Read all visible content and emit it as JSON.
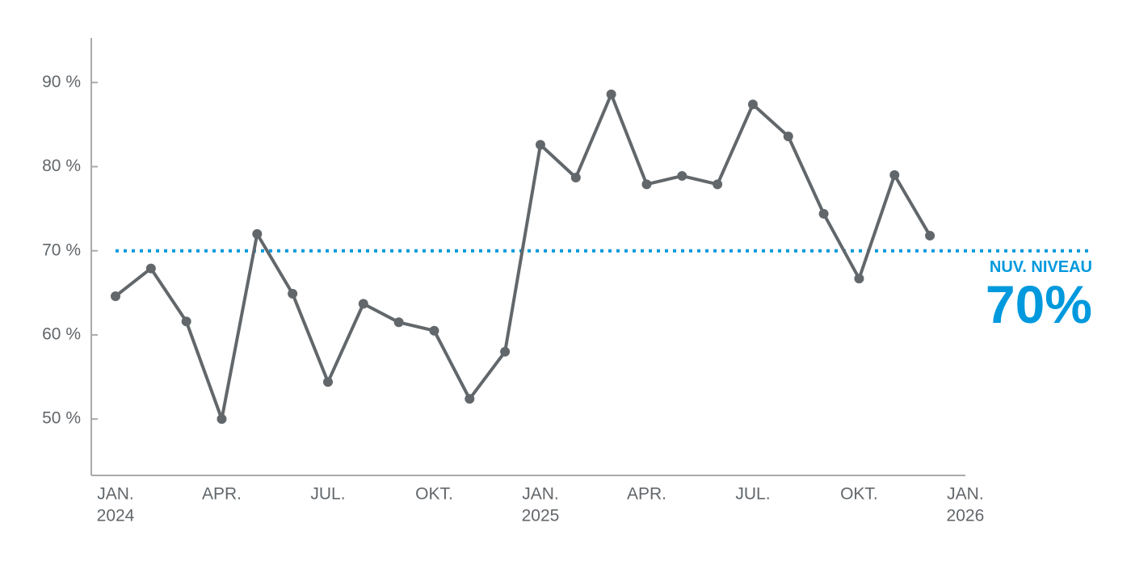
{
  "chart_data": {
    "type": "line",
    "x": [
      "2024-01",
      "2024-02",
      "2024-03",
      "2024-04",
      "2024-05",
      "2024-06",
      "2024-07",
      "2024-08",
      "2024-09",
      "2024-10",
      "2024-11",
      "2024-12",
      "2025-01",
      "2025-02",
      "2025-03",
      "2025-04",
      "2025-05",
      "2025-06",
      "2025-07",
      "2025-08",
      "2025-09",
      "2025-10",
      "2025-11",
      "2025-12"
    ],
    "series": [
      {
        "color": "#62676b",
        "values": [
          64.6,
          67.9,
          61.6,
          50.0,
          72.0,
          64.9,
          54.4,
          63.7,
          61.5,
          60.5,
          52.4,
          58.0,
          82.6,
          78.7,
          88.6,
          77.9,
          78.9,
          77.9,
          87.4,
          83.6,
          74.4,
          66.7,
          79.0,
          71.8
        ]
      }
    ],
    "ylim": [
      43.3,
      95.3
    ],
    "yticks": [
      {
        "value": 50,
        "label": "50 %"
      },
      {
        "value": 60,
        "label": "60 %"
      },
      {
        "value": 70,
        "label": "70 %"
      },
      {
        "value": 80,
        "label": "80 %"
      },
      {
        "value": 90,
        "label": "90 %"
      }
    ],
    "xticks": [
      {
        "value": "2024-01",
        "label": [
          "JAN.",
          "2024"
        ]
      },
      {
        "value": "2024-04",
        "label": [
          "APR."
        ]
      },
      {
        "value": "2024-07",
        "label": [
          "JUL."
        ]
      },
      {
        "value": "2024-10",
        "label": [
          "OKT."
        ]
      },
      {
        "value": "2025-01",
        "label": [
          "JAN.",
          "2025"
        ]
      },
      {
        "value": "2025-04",
        "label": [
          "APR."
        ]
      },
      {
        "value": "2025-07",
        "label": [
          "JUL."
        ]
      },
      {
        "value": "2025-10",
        "label": [
          "OKT."
        ]
      },
      {
        "value": "2026-01",
        "label": [
          "JAN.",
          "2026"
        ]
      }
    ],
    "reference": {
      "value": 70,
      "color": "#0099dd",
      "label": "NUV. NIVEAU",
      "value_label": "70%"
    }
  }
}
